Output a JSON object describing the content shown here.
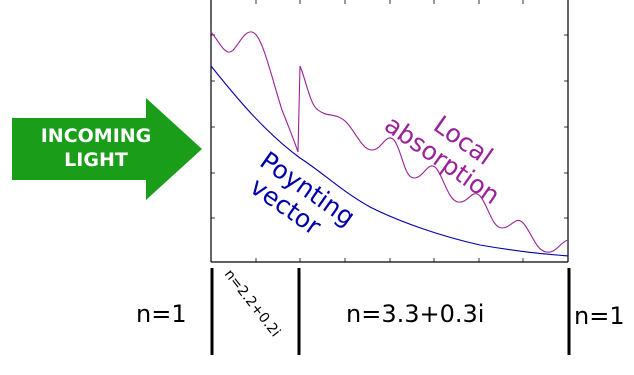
{
  "arrow": {
    "line1": "INCOMING",
    "line2": "LIGHT",
    "color": "#1a9e1a"
  },
  "curves": {
    "local_absorption": {
      "label_line1": "Local",
      "label_line2": "absorption",
      "color": "#992299"
    },
    "poynting": {
      "label_line1": "Poynting",
      "label_line2": "vector",
      "color": "#0000aa"
    }
  },
  "regions": {
    "left": "n=1",
    "layer1": "n=2.2+0.2i",
    "layer2": "n=3.3+0.3i",
    "right": "n=1"
  }
}
